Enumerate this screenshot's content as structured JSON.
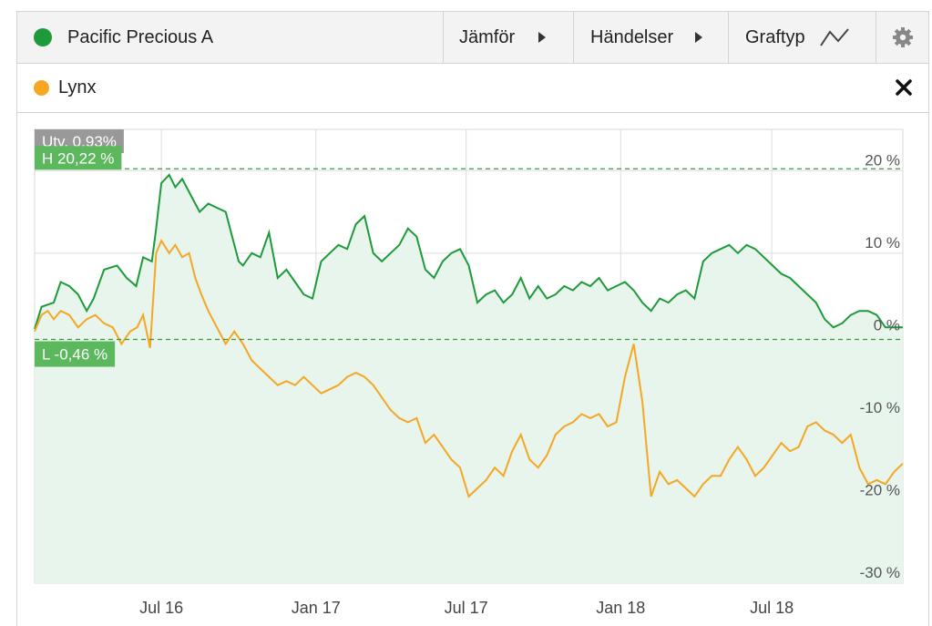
{
  "toolbar": {
    "fund_name": "Pacific Precious A",
    "compare_label": "Jämför",
    "events_label": "Händelser",
    "charttype_label": "Graftyp"
  },
  "legend": {
    "series_label": "Lynx"
  },
  "colors": {
    "primary": "#1e9a3a",
    "secondary": "#f5a623",
    "fill": "#e6f4ec",
    "badge_green": "#5cb85c",
    "badge_gray": "#999999"
  },
  "icons": {
    "compare": "triangle-right-icon",
    "events": "triangle-right-icon",
    "charttype": "line-chart-icon",
    "settings": "gear-icon",
    "close": "close-icon"
  },
  "chart_data": {
    "type": "line",
    "ylim": [
      -30,
      25
    ],
    "yticks": [
      {
        "value": 20,
        "label": "20 %"
      },
      {
        "value": 10,
        "label": "10 %"
      },
      {
        "value": 0,
        "label": "0 %"
      },
      {
        "value": -10,
        "label": "-10 %"
      },
      {
        "value": -20,
        "label": "-20 %"
      },
      {
        "value": -30,
        "label": "-30 %"
      }
    ],
    "xticks": [
      {
        "x": 0.146,
        "label": "Jul 16"
      },
      {
        "x": 0.324,
        "label": "Jan 17"
      },
      {
        "x": 0.497,
        "label": "Jul 17"
      },
      {
        "x": 0.675,
        "label": "Jan 18"
      },
      {
        "x": 0.849,
        "label": "Jul 18"
      }
    ],
    "annotations": {
      "change": "Utv. 0,93%",
      "high": {
        "value": 20.22,
        "label": "H 20,22 %"
      },
      "low": {
        "value": -0.46,
        "label": "L -0,46 %"
      }
    },
    "series": [
      {
        "name": "Pacific Precious A",
        "color": "#1e9a3a",
        "x": [
          0,
          0.008,
          0.022,
          0.03,
          0.04,
          0.05,
          0.06,
          0.068,
          0.08,
          0.095,
          0.106,
          0.117,
          0.125,
          0.135,
          0.14,
          0.146,
          0.155,
          0.162,
          0.17,
          0.18,
          0.19,
          0.2,
          0.21,
          0.22,
          0.235,
          0.24,
          0.25,
          0.26,
          0.27,
          0.28,
          0.29,
          0.3,
          0.31,
          0.32,
          0.33,
          0.34,
          0.35,
          0.36,
          0.37,
          0.38,
          0.39,
          0.4,
          0.41,
          0.42,
          0.43,
          0.44,
          0.45,
          0.46,
          0.47,
          0.48,
          0.49,
          0.5,
          0.51,
          0.52,
          0.53,
          0.54,
          0.55,
          0.56,
          0.57,
          0.58,
          0.59,
          0.6,
          0.61,
          0.62,
          0.63,
          0.64,
          0.65,
          0.66,
          0.67,
          0.68,
          0.69,
          0.7,
          0.71,
          0.72,
          0.73,
          0.74,
          0.75,
          0.76,
          0.77,
          0.78,
          0.79,
          0.8,
          0.81,
          0.82,
          0.83,
          0.84,
          0.85,
          0.86,
          0.87,
          0.88,
          0.89,
          0.9,
          0.91,
          0.92,
          0.93,
          0.94,
          0.95,
          0.96,
          0.97,
          0.98,
          0.99,
          1.0
        ],
        "y": [
          0.8,
          3.5,
          4.0,
          6.5,
          6.0,
          5.0,
          3.0,
          4.5,
          8.0,
          8.5,
          7.0,
          6.0,
          9.5,
          9.0,
          13.0,
          18.5,
          19.5,
          18.0,
          19.0,
          17.0,
          15.0,
          16.0,
          15.5,
          15.0,
          9.0,
          8.5,
          10.0,
          9.5,
          12.5,
          7.0,
          8.0,
          6.5,
          5.0,
          4.5,
          9.0,
          10.0,
          11.0,
          10.5,
          13.5,
          14.5,
          10.0,
          9.0,
          10.0,
          11.0,
          13.0,
          12.0,
          8.0,
          7.0,
          9.0,
          10.0,
          10.5,
          8.5,
          4.0,
          5.0,
          5.5,
          4.0,
          5.0,
          7.0,
          4.5,
          6.0,
          4.5,
          5.0,
          6.0,
          5.5,
          6.5,
          6.0,
          7.0,
          5.5,
          6.0,
          6.5,
          5.5,
          4.0,
          3.0,
          4.5,
          4.0,
          5.0,
          5.5,
          4.5,
          9.0,
          10.0,
          10.5,
          11.0,
          10.0,
          11.0,
          10.5,
          9.5,
          8.5,
          7.5,
          7.0,
          6.0,
          5.0,
          4.0,
          2.0,
          1.0,
          1.5,
          2.5,
          3.0,
          3.0,
          2.5,
          1.0,
          1.0,
          1.0
        ]
      },
      {
        "name": "Lynx",
        "color": "#f5a623",
        "x": [
          0,
          0.008,
          0.015,
          0.022,
          0.03,
          0.04,
          0.05,
          0.06,
          0.07,
          0.08,
          0.09,
          0.1,
          0.11,
          0.118,
          0.125,
          0.133,
          0.14,
          0.146,
          0.155,
          0.162,
          0.17,
          0.178,
          0.185,
          0.192,
          0.2,
          0.21,
          0.22,
          0.23,
          0.24,
          0.25,
          0.26,
          0.27,
          0.28,
          0.29,
          0.3,
          0.31,
          0.32,
          0.33,
          0.34,
          0.35,
          0.36,
          0.37,
          0.38,
          0.39,
          0.4,
          0.41,
          0.42,
          0.43,
          0.44,
          0.45,
          0.46,
          0.47,
          0.48,
          0.49,
          0.5,
          0.51,
          0.52,
          0.53,
          0.54,
          0.55,
          0.56,
          0.57,
          0.58,
          0.59,
          0.6,
          0.61,
          0.62,
          0.63,
          0.64,
          0.65,
          0.66,
          0.67,
          0.68,
          0.69,
          0.7,
          0.71,
          0.72,
          0.73,
          0.74,
          0.75,
          0.76,
          0.77,
          0.78,
          0.79,
          0.8,
          0.81,
          0.82,
          0.83,
          0.84,
          0.85,
          0.86,
          0.87,
          0.88,
          0.89,
          0.9,
          0.91,
          0.92,
          0.93,
          0.94,
          0.95,
          0.96,
          0.97,
          0.98,
          0.99,
          1.0
        ],
        "y": [
          0.5,
          2.5,
          3.0,
          2.0,
          3.0,
          2.5,
          1.0,
          2.0,
          2.5,
          1.5,
          1.0,
          -1.0,
          0.5,
          1.0,
          2.5,
          -1.5,
          10.0,
          11.5,
          10.0,
          11.0,
          9.5,
          10.0,
          7.0,
          5.0,
          3.0,
          1.0,
          -1.0,
          0.5,
          -1.0,
          -3.0,
          -4.0,
          -5.0,
          -6.0,
          -5.5,
          -6.0,
          -5.0,
          -6.0,
          -7.0,
          -6.5,
          -6.0,
          -5.0,
          -4.5,
          -5.0,
          -6.0,
          -7.5,
          -9.0,
          -10.0,
          -10.5,
          -10.0,
          -13.0,
          -12.0,
          -13.5,
          -15.0,
          -16.0,
          -19.5,
          -18.5,
          -17.5,
          -16.0,
          -17.0,
          -14.0,
          -12.0,
          -15.0,
          -16.0,
          -14.5,
          -12.0,
          -11.0,
          -10.5,
          -9.5,
          -10.0,
          -9.5,
          -11.0,
          -10.5,
          -5.0,
          -1.0,
          -8.0,
          -19.5,
          -16.5,
          -18.0,
          -17.5,
          -18.5,
          -19.5,
          -18.0,
          -17.0,
          -17.0,
          -15.0,
          -13.5,
          -15.0,
          -17.0,
          -16.0,
          -14.5,
          -13.0,
          -14.0,
          -13.5,
          -11.0,
          -10.5,
          -11.5,
          -12.0,
          -13.0,
          -12.0,
          -16.0,
          -18.0,
          -17.5,
          -18.0,
          -16.5,
          -15.5
        ]
      }
    ]
  }
}
